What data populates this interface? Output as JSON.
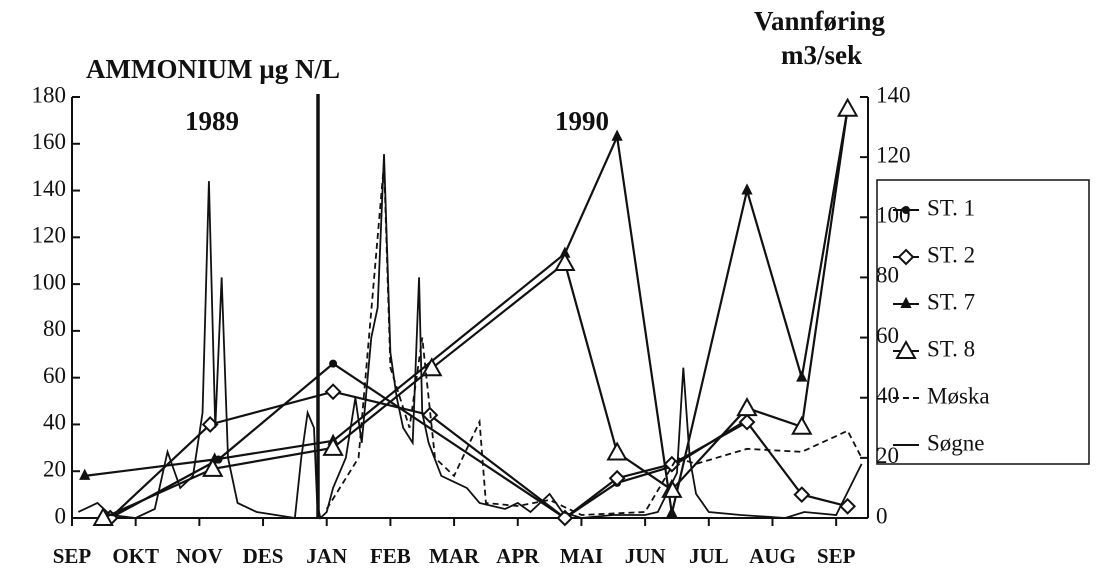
{
  "chart_data": {
    "type": "line",
    "ylabel": "AMMONIUM µg N/L",
    "y2label": [
      "Vannføring",
      "m3/sek"
    ],
    "annotations": [
      "1989",
      "1990"
    ],
    "xlim": [
      0,
      12.5
    ],
    "xticks": [
      {
        "value": 0,
        "label": "SEP"
      },
      {
        "value": 1,
        "label": "OKT"
      },
      {
        "value": 2,
        "label": "NOV"
      },
      {
        "value": 3,
        "label": "DES"
      },
      {
        "value": 4,
        "label": "JAN"
      },
      {
        "value": 5,
        "label": "FEB"
      },
      {
        "value": 6,
        "label": "MAR"
      },
      {
        "value": 7,
        "label": "APR"
      },
      {
        "value": 8,
        "label": "MAI"
      },
      {
        "value": 9,
        "label": "JUN"
      },
      {
        "value": 10,
        "label": "JUL"
      },
      {
        "value": 11,
        "label": "AUG"
      },
      {
        "value": 12,
        "label": "SEP"
      }
    ],
    "ylim": [
      0,
      180
    ],
    "yticks": [
      0,
      20,
      40,
      60,
      80,
      100,
      120,
      140,
      160,
      180
    ],
    "y2lim": [
      0,
      140
    ],
    "y2ticks": [
      0,
      20,
      40,
      60,
      80,
      100,
      120,
      140
    ],
    "series": [
      {
        "name": "ST. 1",
        "color": "#111",
        "marker": "dot",
        "x": [
          0.6,
          2.3,
          4.1,
          7.74,
          8.56,
          9.42,
          10.6
        ],
        "values": [
          0,
          25,
          66,
          0,
          15,
          22,
          42
        ]
      },
      {
        "name": "ST. 2",
        "color": "#111",
        "marker": "diamond",
        "x": [
          0.6,
          2.17,
          4.1,
          5.62,
          7.74,
          8.56,
          9.42,
          10.6,
          11.46,
          12.18
        ],
        "values": [
          0,
          40,
          54,
          44,
          0,
          17,
          23,
          41,
          10,
          5
        ]
      },
      {
        "name": "ST. 7",
        "color": "#111",
        "marker": "small-triangle",
        "x": [
          0.2,
          2.24,
          4.1,
          7.74,
          8.56,
          9.42,
          10.6,
          11.46,
          12.18
        ],
        "values": [
          18,
          25,
          33,
          113,
          163,
          2,
          140,
          60,
          175
        ]
      },
      {
        "name": "ST. 8",
        "color": "#111",
        "marker": "triangle",
        "x": [
          0.49,
          2.21,
          4.1,
          5.65,
          7.74,
          8.56,
          9.42,
          10.6,
          11.46,
          12.18
        ],
        "values": [
          0,
          21,
          30,
          64,
          109,
          28,
          12,
          47,
          39,
          175
        ]
      },
      {
        "name": "Møska",
        "color": "#111",
        "dash": true,
        "axis": "y2",
        "x": [
          4.0,
          4.5,
          4.9,
          5.0,
          5.3,
          5.5,
          5.7,
          6.0,
          6.4,
          6.5,
          7.0,
          7.5,
          8.0,
          9.0,
          9.5,
          9.8,
          10.6,
          11.46,
          12.18,
          12.4
        ],
        "values": [
          3,
          20,
          118,
          50,
          30,
          60,
          20,
          14,
          32,
          5,
          4,
          6,
          1,
          2,
          20,
          18,
          23,
          22,
          29,
          20
        ]
      },
      {
        "name": "Søgne",
        "color": "#111",
        "axis": "y2",
        "x": [
          0.1,
          0.4,
          0.6,
          1.0,
          1.3,
          1.5,
          1.7,
          1.9,
          2.05,
          2.15,
          2.25,
          2.35,
          2.45,
          2.6,
          2.9,
          3.2,
          3.5,
          3.6,
          3.7,
          3.8,
          3.85,
          3.9,
          4.0,
          4.1,
          4.3,
          4.45,
          4.55,
          4.7,
          4.8,
          4.9,
          5.0,
          5.1,
          5.2,
          5.35,
          5.45,
          5.5,
          5.6,
          5.8,
          6.0,
          6.2,
          6.4,
          6.6,
          6.8,
          7.0,
          7.2,
          7.5,
          7.7,
          8.0,
          8.5,
          9.0,
          9.2,
          9.5,
          9.6,
          9.7,
          9.8,
          10.0,
          10.5,
          11.2,
          11.5,
          12.0,
          12.4
        ],
        "values": [
          2,
          5,
          1,
          0,
          3,
          22,
          10,
          14,
          35,
          112,
          30,
          80,
          20,
          5,
          2,
          1,
          0,
          20,
          35,
          30,
          5,
          0,
          2,
          10,
          20,
          40,
          25,
          60,
          70,
          121,
          55,
          40,
          30,
          25,
          80,
          35,
          25,
          14,
          12,
          10,
          5,
          4,
          3,
          5,
          2,
          8,
          2,
          0,
          1,
          1,
          2,
          15,
          50,
          20,
          8,
          2,
          1,
          0,
          2,
          1,
          18
        ]
      }
    ]
  }
}
